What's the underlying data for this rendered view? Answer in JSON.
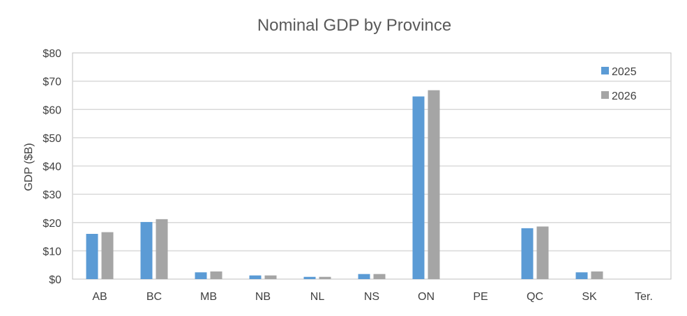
{
  "chart_data": {
    "type": "bar",
    "title": "Nominal GDP by Province",
    "xlabel": "",
    "ylabel": "GDP ($B)",
    "ylim": [
      0,
      80
    ],
    "yticks": [
      0,
      10,
      20,
      30,
      40,
      50,
      60,
      70,
      80
    ],
    "ytick_labels": [
      "$0",
      "$10",
      "$20",
      "$30",
      "$40",
      "$50",
      "$60",
      "$70",
      "$80"
    ],
    "categories": [
      "AB",
      "BC",
      "MB",
      "NB",
      "NL",
      "NS",
      "ON",
      "PE",
      "QC",
      "SK",
      "Ter."
    ],
    "series": [
      {
        "name": "2025",
        "color": "#5b9bd5",
        "values": [
          16.0,
          20.2,
          2.4,
          1.3,
          0.8,
          1.8,
          64.6,
          0.0,
          18.0,
          2.4,
          0.0
        ]
      },
      {
        "name": "2026",
        "color": "#a5a5a5",
        "values": [
          16.6,
          21.2,
          2.7,
          1.3,
          0.8,
          1.8,
          66.8,
          0.0,
          18.6,
          2.7,
          0.0
        ]
      }
    ],
    "grid": true,
    "legend_position": "top-right"
  }
}
